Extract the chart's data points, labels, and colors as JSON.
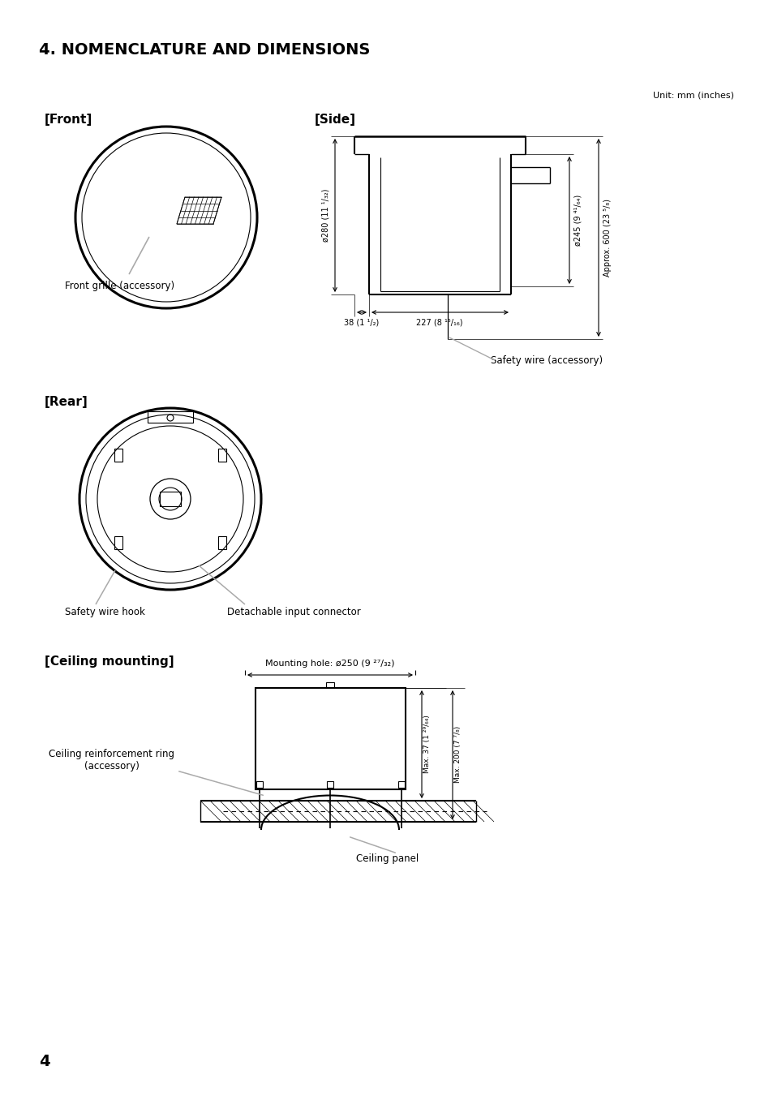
{
  "title": "4. NOMENCLATURE AND DIMENSIONS",
  "unit_label": "Unit: mm (inches)",
  "bg_color": "#ffffff",
  "lc": "#000000",
  "gc": "#aaaaaa",
  "front_label": "[Front]",
  "side_label": "[Side]",
  "rear_label": "[Rear]",
  "ceiling_label": "[Ceiling mounting]",
  "front_grille_label": "Front grille (accessory)",
  "safety_wire_hook_label": "Safety wire hook",
  "detachable_input_label": "Detachable input connector",
  "safety_wire_label": "Safety wire (accessory)",
  "ceiling_ring_label": "Ceiling reinforcement ring\n(accessory)",
  "ceiling_panel_label": "Ceiling panel",
  "mounting_hole_label": "Mounting hole: ø250 (9 ²⁷/₃₂)",
  "dim_280": "ø280 (11 ¹/₃₂)",
  "dim_245": "ø245 (9 ⁴¹/₆₄)",
  "dim_38": "38 (1 ¹/₂)",
  "dim_227": "227 (8 ¹⁵/₁₆)",
  "dim_600": "Approx. 600 (23 ⁵/₈)",
  "dim_37": "Max. 37 (1 ²⁹/₆₄)",
  "dim_200": "Max. 200 (7 ⁷/₈)",
  "page_number": "4"
}
